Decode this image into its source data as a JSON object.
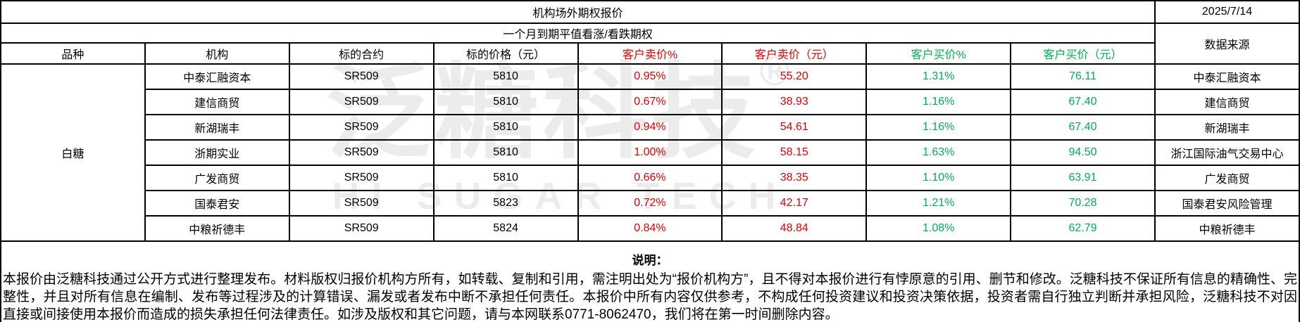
{
  "header": {
    "title": "机构场外期权报价",
    "date": "2025/7/14",
    "subtitle": "一个月到期平值看涨/看跌期权"
  },
  "table": {
    "columns": [
      {
        "label": "品种"
      },
      {
        "label": "机构"
      },
      {
        "label": "标的合约"
      },
      {
        "label": "标的价格（元）"
      },
      {
        "label": "客户卖价%"
      },
      {
        "label": "客户卖价（元）"
      },
      {
        "label": "客户买价%"
      },
      {
        "label": "客户买价（元）"
      },
      {
        "label": "数据来源"
      }
    ],
    "variety": "白糖",
    "rows": [
      {
        "institution": "中泰汇融资本",
        "contract": "SR509",
        "underlying_price": "5810",
        "sell_pct": "0.95%",
        "sell_price": "55.20",
        "buy_pct": "1.31%",
        "buy_price": "76.11",
        "source": "中泰汇融资本"
      },
      {
        "institution": "建信商贸",
        "contract": "SR509",
        "underlying_price": "5810",
        "sell_pct": "0.67%",
        "sell_price": "38.93",
        "buy_pct": "1.16%",
        "buy_price": "67.40",
        "source": "建信商贸"
      },
      {
        "institution": "新湖瑞丰",
        "contract": "SR509",
        "underlying_price": "5810",
        "sell_pct": "0.94%",
        "sell_price": "54.61",
        "buy_pct": "1.16%",
        "buy_price": "67.40",
        "source": "新湖瑞丰"
      },
      {
        "institution": "浙期实业",
        "contract": "SR509",
        "underlying_price": "5810",
        "sell_pct": "1.00%",
        "sell_price": "58.15",
        "buy_pct": "1.63%",
        "buy_price": "94.50",
        "source": "浙江国际油气交易中心"
      },
      {
        "institution": "广发商贸",
        "contract": "SR509",
        "underlying_price": "5810",
        "sell_pct": "0.66%",
        "sell_price": "38.35",
        "buy_pct": "1.10%",
        "buy_price": "63.91",
        "source": "广发商贸"
      },
      {
        "institution": "国泰君安",
        "contract": "SR509",
        "underlying_price": "5823",
        "sell_pct": "0.72%",
        "sell_price": "42.17",
        "buy_pct": "1.21%",
        "buy_price": "70.28",
        "source": "国泰君安风险管理"
      },
      {
        "institution": "中粮祈德丰",
        "contract": "SR509",
        "underlying_price": "5824",
        "sell_pct": "0.84%",
        "sell_price": "48.84",
        "buy_pct": "1.08%",
        "buy_price": "62.79",
        "source": "中粮祈德丰"
      }
    ]
  },
  "notes": {
    "label": "说明：",
    "text": "本报价由泛糖科技通过公开方式进行整理发布。材料版权归报价机构方所有，如转载、复制和引用，需注明出处为“报价机构方”，且不得对本报价进行有悖原意的引用、删节和修改。泛糖科技不保证所有信息的精确性、完整性，并且对所有信息在编制、发布等过程涉及的计算错误、漏发或者发布中断不承担任何责任。本报价中所有内容仅供参考，不构成任何投资建议和投资决策依据，投资者需自行独立判断并承担风险，泛糖科技不对因直接或间接使用本报价而造成的损失承担任何法律责任。如涉及版权和其它问题，请与本网联系0771-8062470，我们将在第一时间删除内容。"
  },
  "watermark": {
    "cn": "泛糖科技",
    "reg": "®",
    "en": "HI SUGAR TECH"
  },
  "colors": {
    "red": "#e00000",
    "green": "#00b050"
  }
}
